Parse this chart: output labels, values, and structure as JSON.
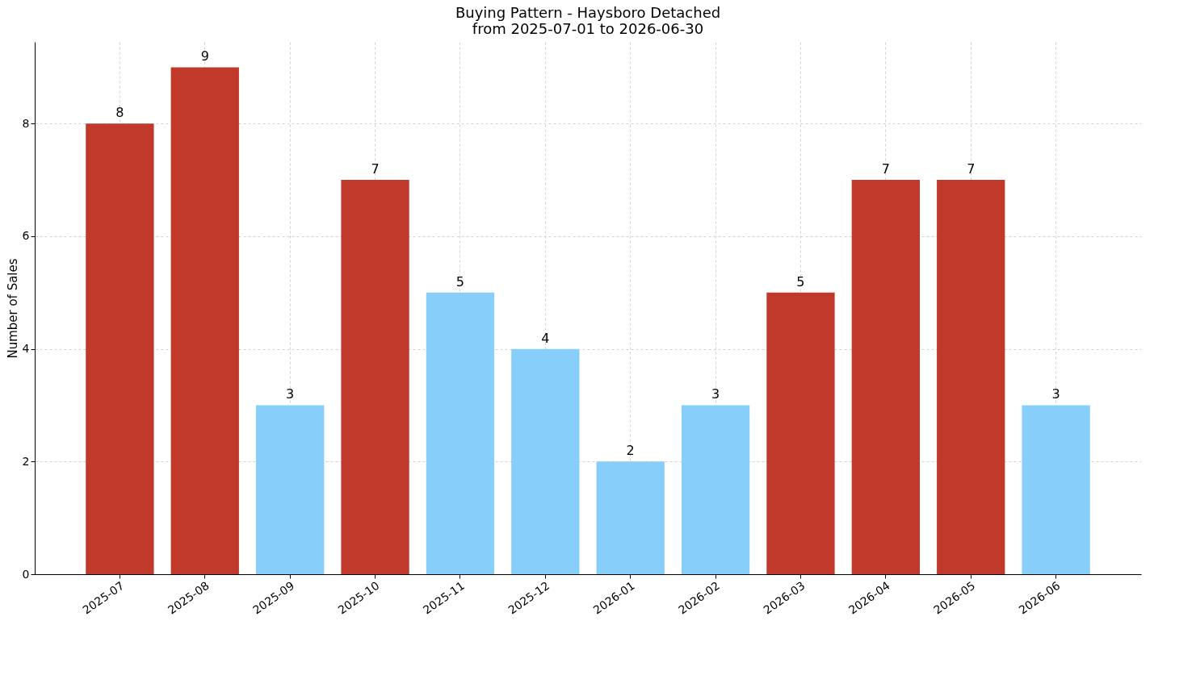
{
  "chart_data": {
    "type": "bar",
    "title": "Buying Pattern - Haysboro Detached",
    "subtitle": "from 2025-07-01 to 2026-06-30",
    "ylabel": "Number of Sales",
    "categories": [
      "2025-07",
      "2025-08",
      "2025-09",
      "2025-10",
      "2025-11",
      "2025-12",
      "2026-01",
      "2026-02",
      "2026-03",
      "2026-04",
      "2026-05",
      "2026-06"
    ],
    "values": [
      8,
      9,
      3,
      7,
      5,
      4,
      2,
      3,
      5,
      7,
      7,
      3
    ],
    "colors": [
      "#c0392b",
      "#c0392b",
      "#87cefa",
      "#c0392b",
      "#87cefa",
      "#87cefa",
      "#87cefa",
      "#87cefa",
      "#c0392b",
      "#c0392b",
      "#c0392b",
      "#87cefa"
    ],
    "ylim": [
      0,
      9.45
    ],
    "yticks": [
      0,
      2,
      4,
      6,
      8
    ],
    "grid": true,
    "data_labels": true
  }
}
